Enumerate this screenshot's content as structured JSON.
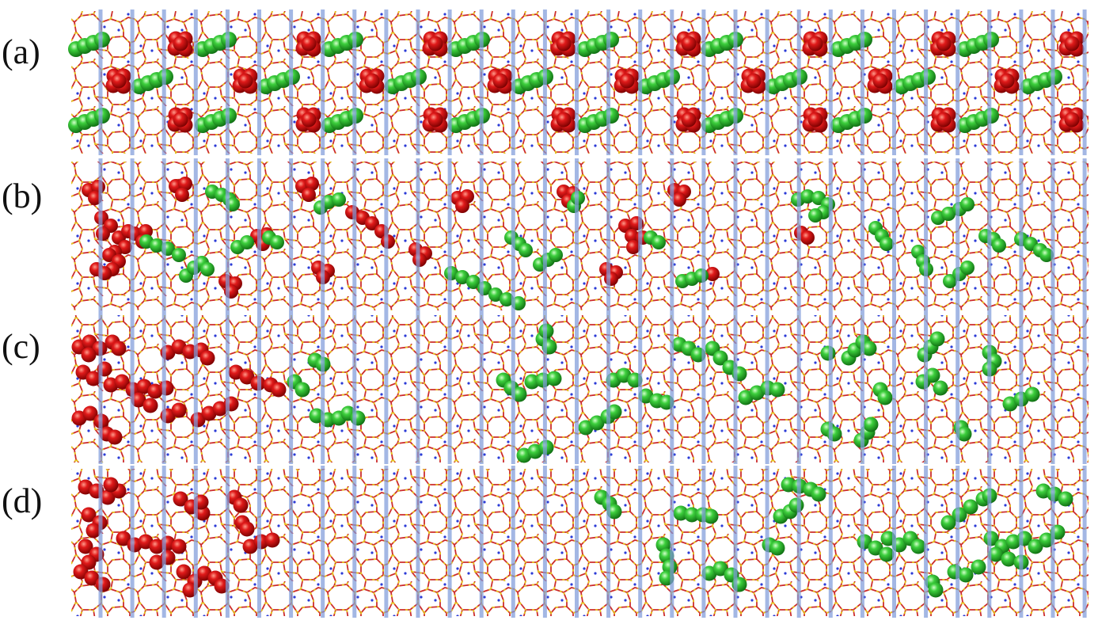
{
  "figure": {
    "panels": [
      {
        "label": "(a)"
      },
      {
        "label": "(b)"
      },
      {
        "label": "(c)"
      },
      {
        "label": "(d)"
      }
    ]
  },
  "colors": {
    "background": "#ffffff",
    "framework_oxygen": "#cc2c2c",
    "framework_silicon": "#e6c41e",
    "framework_cation": "#2b3bd6",
    "channel_line": "#7f9bd9",
    "molecule_red": "#e01a1a",
    "molecule_green": "#3dcf3d"
  }
}
